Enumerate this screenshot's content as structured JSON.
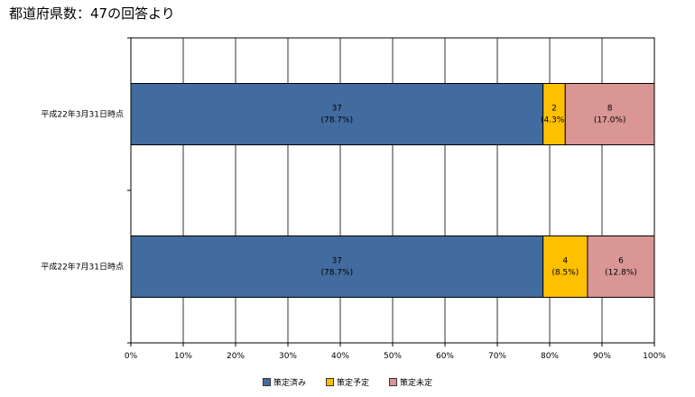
{
  "title": "都道府県数：47の回答より",
  "chart_data": {
    "type": "bar",
    "orientation": "horizontal",
    "stacked": "percent",
    "categories": [
      "平成22年3月31日時点",
      "平成22年7月31日時点"
    ],
    "series": [
      {
        "name": "策定済み",
        "color": "#426C9F",
        "values": [
          37,
          37
        ],
        "labels": [
          "37",
          "37"
        ],
        "sublabels": [
          "(78.7%)",
          "(78.7%)"
        ]
      },
      {
        "name": "策定予定",
        "color": "#FFC000",
        "values": [
          2,
          4
        ],
        "labels": [
          "2",
          "4"
        ],
        "sublabels": [
          "(4.3%)",
          "(8.5%)"
        ]
      },
      {
        "name": "策定未定",
        "color": "#D99694",
        "values": [
          8,
          6
        ],
        "labels": [
          "8",
          "6"
        ],
        "sublabels": [
          "(17.0%)",
          "(12.8%)"
        ]
      }
    ],
    "total": 47,
    "xlim": [
      0,
      100
    ],
    "xticks": [
      "0%",
      "10%",
      "20%",
      "30%",
      "40%",
      "50%",
      "60%",
      "70%",
      "80%",
      "90%",
      "100%"
    ],
    "grid": true,
    "legend_position": "bottom"
  }
}
